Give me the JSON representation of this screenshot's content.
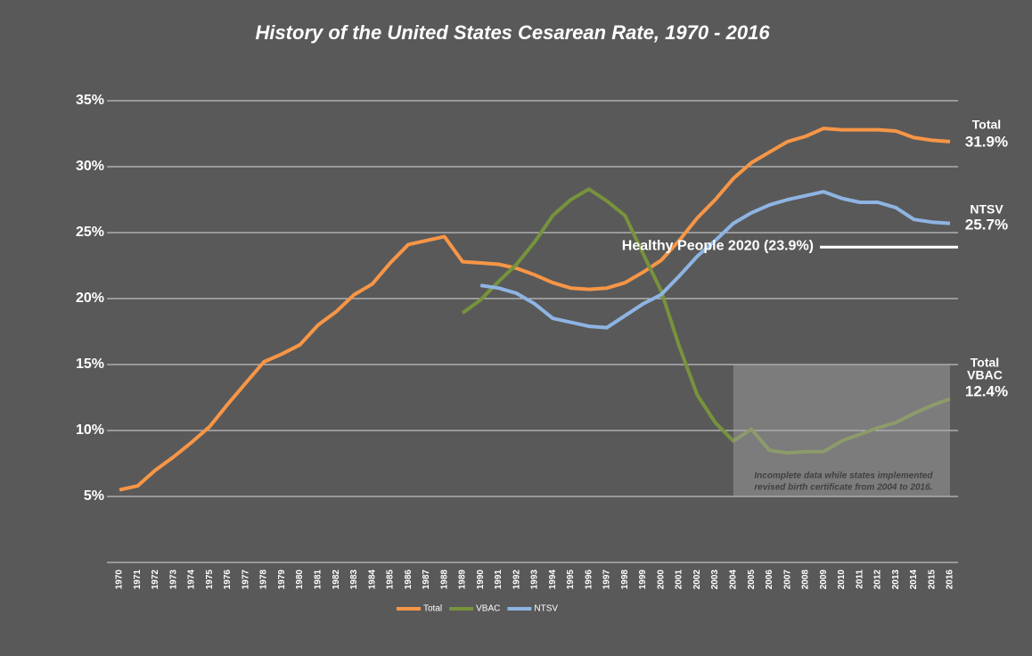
{
  "chart_data": {
    "type": "line",
    "title": "History of the United States Cesarean Rate, 1970 - 2016",
    "categories": [
      "1970",
      "1971",
      "1972",
      "1973",
      "1974",
      "1975",
      "1976",
      "1977",
      "1978",
      "1979",
      "1980",
      "1981",
      "1982",
      "1983",
      "1984",
      "1985",
      "1986",
      "1987",
      "1988",
      "1989",
      "1990",
      "1991",
      "1992",
      "1993",
      "1994",
      "1995",
      "1996",
      "1997",
      "1998",
      "1999",
      "2000",
      "2001",
      "2002",
      "2003",
      "2004",
      "2005",
      "2006",
      "2007",
      "2008",
      "2009",
      "2010",
      "2011",
      "2012",
      "2013",
      "2014",
      "2015",
      "2016"
    ],
    "series": [
      {
        "name": "Total",
        "color": "#f79646",
        "end_value_label": "31.9%",
        "values": [
          5.5,
          5.8,
          7.0,
          8.0,
          9.1,
          10.3,
          12.0,
          13.6,
          15.2,
          15.8,
          16.5,
          18.0,
          19.0,
          20.3,
          21.1,
          22.7,
          24.1,
          24.4,
          24.7,
          22.8,
          22.7,
          22.6,
          22.3,
          21.8,
          21.2,
          20.8,
          20.7,
          20.8,
          21.2,
          22.0,
          22.9,
          24.4,
          26.1,
          27.5,
          29.1,
          30.3,
          31.1,
          31.9,
          32.3,
          32.9,
          32.8,
          32.8,
          32.8,
          32.7,
          32.2,
          32.0,
          31.9
        ]
      },
      {
        "name": "VBAC",
        "color": "#77933c",
        "end_label": [
          "Total",
          "VBAC"
        ],
        "end_value_label": "12.4%",
        "values": [
          null,
          null,
          null,
          null,
          null,
          null,
          null,
          null,
          null,
          null,
          null,
          null,
          null,
          null,
          null,
          null,
          null,
          null,
          null,
          18.9,
          19.9,
          21.3,
          22.6,
          24.3,
          26.3,
          27.5,
          28.3,
          27.4,
          26.3,
          23.4,
          20.6,
          16.4,
          12.7,
          10.6,
          9.2,
          10.1,
          8.5,
          8.3,
          8.4,
          8.4,
          9.2,
          9.7,
          10.2,
          10.6,
          11.3,
          11.9,
          12.4
        ]
      },
      {
        "name": "NTSV",
        "color": "#8eb4e3",
        "end_value_label": "25.7%",
        "values": [
          null,
          null,
          null,
          null,
          null,
          null,
          null,
          null,
          null,
          null,
          null,
          null,
          null,
          null,
          null,
          null,
          null,
          null,
          null,
          null,
          21.0,
          20.8,
          20.4,
          19.6,
          18.5,
          18.2,
          17.9,
          17.8,
          18.7,
          19.6,
          20.3,
          21.7,
          23.2,
          24.4,
          25.7,
          26.5,
          27.1,
          27.5,
          27.8,
          28.1,
          27.6,
          27.3,
          27.3,
          26.9,
          26.0,
          25.8,
          25.7
        ]
      }
    ],
    "ylim": [
      0,
      35
    ],
    "yticks": [
      {
        "value": 5,
        "label": "5%"
      },
      {
        "value": 10,
        "label": "10%"
      },
      {
        "value": 15,
        "label": "15%"
      },
      {
        "value": 20,
        "label": "20%"
      },
      {
        "value": 25,
        "label": "25%"
      },
      {
        "value": 30,
        "label": "30%"
      },
      {
        "value": 35,
        "label": "35%"
      }
    ],
    "grid": true,
    "reference_line": {
      "value": 23.9,
      "label": "Healthy People 2020 (23.9%)",
      "color": "#ffffff"
    },
    "shaded_region": {
      "from": "2004",
      "to": "2016",
      "bottom": 5,
      "top": 15,
      "text": [
        "Incomplete data while states implemented",
        "revised birth certificate from 2004 to 2016."
      ]
    },
    "legend": "bottom"
  }
}
